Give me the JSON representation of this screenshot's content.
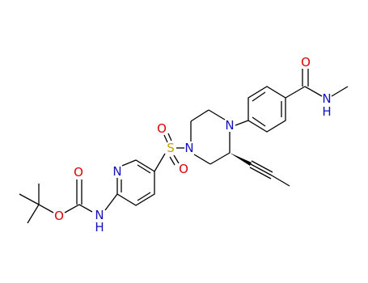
{
  "atoms": [
    {
      "label": "O"
    },
    {
      "label": "N"
    },
    {
      "label": "H"
    },
    {
      "label": "N"
    },
    {
      "label": "N"
    },
    {
      "label": "S"
    },
    {
      "label": "O"
    },
    {
      "label": "O"
    },
    {
      "label": "N"
    },
    {
      "label": "N"
    },
    {
      "label": "H"
    },
    {
      "label": "O"
    },
    {
      "label": "O"
    }
  ]
}
